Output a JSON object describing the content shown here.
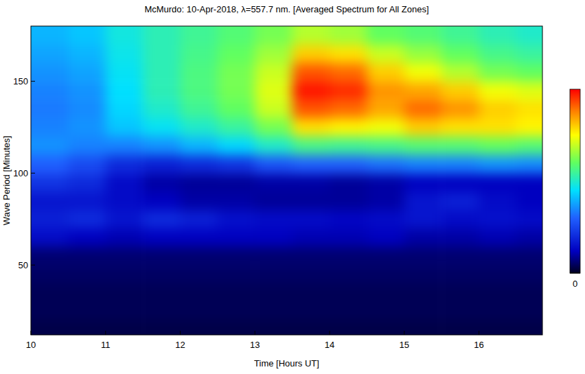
{
  "chart_data": {
    "type": "heatmap",
    "title": "McMurdo: 10-Apr-2018, λ=557.7 nm. [Averaged Spectrum for All Zones]",
    "x_label": "Time [Hours UT]",
    "y_label": "Wave Period [Minutes]",
    "xlim": [
      10,
      16.85
    ],
    "xticks": [
      10,
      11,
      12,
      13,
      14,
      15,
      16
    ],
    "ylim": [
      12,
      180
    ],
    "yticks": [
      50,
      100,
      150
    ],
    "zlim": [
      0,
      1
    ],
    "zticks": [
      0
    ],
    "x": [
      10.25,
      10.75,
      11.25,
      11.75,
      12.25,
      12.75,
      13.25,
      13.75,
      14.25,
      14.75,
      15.25,
      15.75,
      16.25,
      16.75
    ],
    "y": [
      15,
      25,
      35,
      45,
      55,
      65,
      75,
      85,
      95,
      105,
      115,
      125,
      135,
      145,
      155,
      165,
      175
    ],
    "values": [
      [
        0.03,
        0.03,
        0.03,
        0.03,
        0.03,
        0.03,
        0.03,
        0.03,
        0.03,
        0.03,
        0.03,
        0.03,
        0.03,
        0.03
      ],
      [
        0.04,
        0.04,
        0.04,
        0.04,
        0.04,
        0.04,
        0.04,
        0.04,
        0.04,
        0.04,
        0.04,
        0.04,
        0.04,
        0.04
      ],
      [
        0.04,
        0.04,
        0.04,
        0.04,
        0.04,
        0.04,
        0.04,
        0.04,
        0.04,
        0.04,
        0.04,
        0.04,
        0.04,
        0.04
      ],
      [
        0.05,
        0.05,
        0.05,
        0.05,
        0.05,
        0.05,
        0.05,
        0.05,
        0.05,
        0.05,
        0.05,
        0.05,
        0.05,
        0.05
      ],
      [
        0.06,
        0.06,
        0.06,
        0.06,
        0.06,
        0.06,
        0.06,
        0.06,
        0.06,
        0.06,
        0.06,
        0.06,
        0.06,
        0.06
      ],
      [
        0.14,
        0.12,
        0.11,
        0.12,
        0.12,
        0.12,
        0.12,
        0.11,
        0.11,
        0.12,
        0.1,
        0.1,
        0.11,
        0.1
      ],
      [
        0.18,
        0.2,
        0.16,
        0.2,
        0.18,
        0.15,
        0.14,
        0.14,
        0.13,
        0.14,
        0.16,
        0.14,
        0.15,
        0.14
      ],
      [
        0.16,
        0.16,
        0.14,
        0.12,
        0.1,
        0.1,
        0.09,
        0.09,
        0.09,
        0.1,
        0.16,
        0.18,
        0.14,
        0.12
      ],
      [
        0.22,
        0.2,
        0.14,
        0.1,
        0.09,
        0.09,
        0.1,
        0.1,
        0.09,
        0.1,
        0.12,
        0.12,
        0.12,
        0.12
      ],
      [
        0.3,
        0.26,
        0.2,
        0.18,
        0.2,
        0.22,
        0.28,
        0.3,
        0.3,
        0.32,
        0.34,
        0.34,
        0.36,
        0.35
      ],
      [
        0.36,
        0.34,
        0.34,
        0.36,
        0.4,
        0.44,
        0.5,
        0.56,
        0.55,
        0.56,
        0.58,
        0.58,
        0.6,
        0.58
      ],
      [
        0.34,
        0.36,
        0.42,
        0.46,
        0.5,
        0.54,
        0.62,
        0.78,
        0.76,
        0.74,
        0.8,
        0.78,
        0.78,
        0.76
      ],
      [
        0.33,
        0.35,
        0.44,
        0.5,
        0.55,
        0.6,
        0.7,
        0.92,
        0.9,
        0.84,
        0.9,
        0.86,
        0.8,
        0.78
      ],
      [
        0.34,
        0.36,
        0.45,
        0.52,
        0.57,
        0.62,
        0.72,
        0.98,
        0.96,
        0.86,
        0.84,
        0.8,
        0.74,
        0.72
      ],
      [
        0.36,
        0.38,
        0.46,
        0.52,
        0.57,
        0.62,
        0.7,
        0.92,
        0.9,
        0.8,
        0.74,
        0.68,
        0.62,
        0.6
      ],
      [
        0.38,
        0.4,
        0.47,
        0.52,
        0.56,
        0.6,
        0.66,
        0.8,
        0.78,
        0.7,
        0.65,
        0.6,
        0.56,
        0.54
      ],
      [
        0.4,
        0.42,
        0.48,
        0.52,
        0.55,
        0.58,
        0.62,
        0.68,
        0.66,
        0.6,
        0.58,
        0.55,
        0.52,
        0.5
      ]
    ]
  }
}
